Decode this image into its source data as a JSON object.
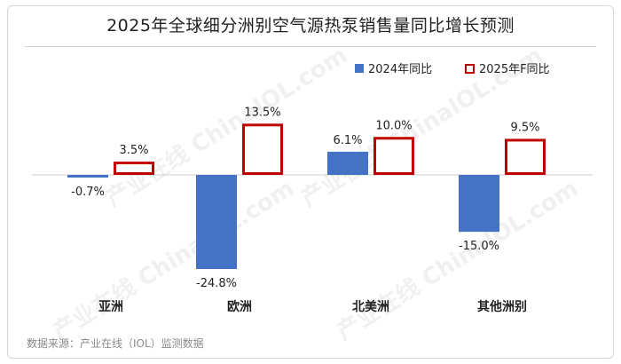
{
  "chart_data": {
    "type": "bar",
    "title": "2025年全球细分洲别空气源热泵销售量同比增长预测",
    "categories": [
      "亚洲",
      "欧洲",
      "北美洲",
      "其他洲别"
    ],
    "series": [
      {
        "name": "2024年同比",
        "values": [
          -0.7,
          -24.8,
          6.1,
          -15.0
        ],
        "labels": [
          "-0.7%",
          "-24.8%",
          "6.1%",
          "-15.0%"
        ],
        "color": "#4472C4",
        "style": "filled"
      },
      {
        "name": "2025年F同比",
        "values": [
          3.5,
          13.5,
          10.0,
          9.5
        ],
        "labels": [
          "3.5%",
          "13.5%",
          "10.0%",
          "9.5%"
        ],
        "color": "#C00000",
        "style": "outline"
      }
    ],
    "legend_position": "top-right",
    "grid": false,
    "ylim": [
      -25,
      15
    ]
  },
  "source": "数据来源：产业在线（IOL）监测数据",
  "watermark": "产业在线 ChinaIOL.com"
}
